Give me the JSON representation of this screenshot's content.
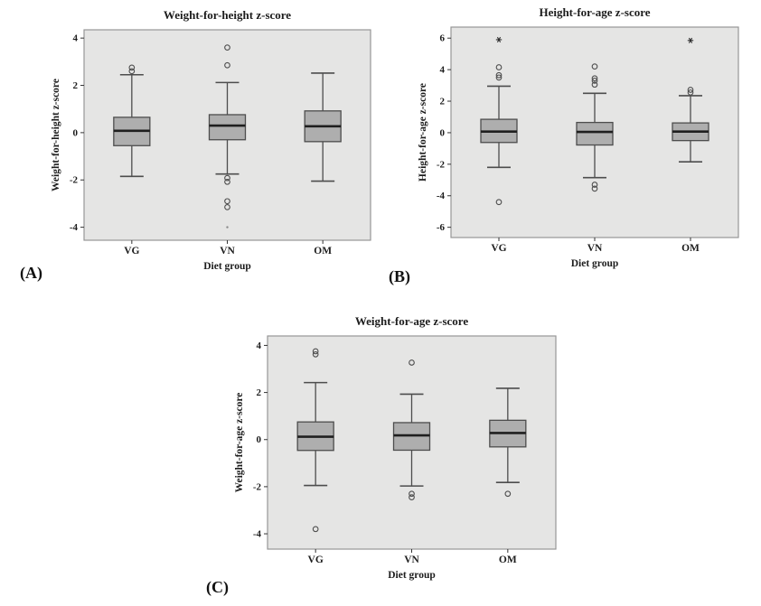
{
  "colors": {
    "plot_bg": "#e5e5e4",
    "plot_border": "#979797",
    "box_fill": "#aeaeae",
    "box_border": "#4d4d4d",
    "median": "#1f1f1f",
    "whisker": "#4d4d4d",
    "text": "#1c1c1c"
  },
  "chart_data": [
    {
      "type": "box",
      "panel_label": "(A)",
      "title": "Weight-for-height z-score",
      "ylabel": "Weight-for-height z-score",
      "xlabel": "Diet group",
      "categories": [
        "VG",
        "VN",
        "OM"
      ],
      "ylim": [
        -4.55,
        4.35
      ],
      "yticks": [
        4,
        2,
        0,
        -2,
        -4
      ],
      "grid": false,
      "boxes": [
        {
          "category": "VG",
          "whisker_low": -1.85,
          "q1": -0.55,
          "median": 0.08,
          "q3": 0.65,
          "whisker_high": 2.45,
          "outliers": [
            {
              "value": 2.6,
              "marker": "circle"
            },
            {
              "value": 2.75,
              "marker": "circle"
            }
          ]
        },
        {
          "category": "VN",
          "whisker_low": -1.75,
          "q1": -0.3,
          "median": 0.3,
          "q3": 0.76,
          "whisker_high": 2.12,
          "outliers": [
            {
              "value": 3.6,
              "marker": "circle"
            },
            {
              "value": 2.85,
              "marker": "circle"
            },
            {
              "value": -1.92,
              "marker": "circle"
            },
            {
              "value": -2.08,
              "marker": "circle"
            },
            {
              "value": -2.9,
              "marker": "circle"
            },
            {
              "value": -3.15,
              "marker": "circle"
            },
            {
              "value": -4.0,
              "marker": "dot"
            }
          ]
        },
        {
          "category": "OM",
          "whisker_low": -2.05,
          "q1": -0.38,
          "median": 0.27,
          "q3": 0.92,
          "whisker_high": 2.52,
          "outliers": []
        }
      ]
    },
    {
      "type": "box",
      "panel_label": "(B)",
      "title": "Height-for-age z-score",
      "ylabel": "Height-for-age z-score",
      "xlabel": "Diet group",
      "categories": [
        "VG",
        "VN",
        "OM"
      ],
      "ylim": [
        -6.65,
        6.7
      ],
      "yticks": [
        6,
        4,
        2,
        0,
        -2,
        -4,
        -6
      ],
      "grid": false,
      "boxes": [
        {
          "category": "VG",
          "whisker_low": -2.2,
          "q1": -0.62,
          "median": 0.07,
          "q3": 0.85,
          "whisker_high": 2.95,
          "outliers": [
            {
              "value": 5.9,
              "marker": "asterisk"
            },
            {
              "value": 4.15,
              "marker": "circle"
            },
            {
              "value": 3.65,
              "marker": "circle"
            },
            {
              "value": 3.5,
              "marker": "circle"
            },
            {
              "value": -4.4,
              "marker": "circle"
            }
          ]
        },
        {
          "category": "VN",
          "whisker_low": -2.85,
          "q1": -0.78,
          "median": 0.05,
          "q3": 0.65,
          "whisker_high": 2.5,
          "outliers": [
            {
              "value": 4.2,
              "marker": "circle"
            },
            {
              "value": 3.45,
              "marker": "circle"
            },
            {
              "value": 3.3,
              "marker": "circle"
            },
            {
              "value": 3.05,
              "marker": "circle"
            },
            {
              "value": -3.3,
              "marker": "circle"
            },
            {
              "value": -3.55,
              "marker": "circle"
            }
          ]
        },
        {
          "category": "OM",
          "whisker_low": -1.85,
          "q1": -0.5,
          "median": 0.07,
          "q3": 0.62,
          "whisker_high": 2.35,
          "outliers": [
            {
              "value": 5.85,
              "marker": "asterisk"
            },
            {
              "value": 2.72,
              "marker": "circle"
            },
            {
              "value": 2.55,
              "marker": "circle"
            }
          ]
        }
      ]
    },
    {
      "type": "box",
      "panel_label": "(C)",
      "title": "Weight-for-age z-score",
      "ylabel": "Weight-for-age z-score",
      "xlabel": "Diet group",
      "categories": [
        "VG",
        "VN",
        "OM"
      ],
      "ylim": [
        -4.65,
        4.4
      ],
      "yticks": [
        4,
        2,
        0,
        -2,
        -4
      ],
      "grid": false,
      "boxes": [
        {
          "category": "VG",
          "whisker_low": -1.95,
          "q1": -0.46,
          "median": 0.12,
          "q3": 0.75,
          "whisker_high": 2.42,
          "outliers": [
            {
              "value": 3.75,
              "marker": "circle"
            },
            {
              "value": 3.62,
              "marker": "circle"
            },
            {
              "value": -3.8,
              "marker": "circle"
            }
          ]
        },
        {
          "category": "VN",
          "whisker_low": -1.97,
          "q1": -0.45,
          "median": 0.18,
          "q3": 0.72,
          "whisker_high": 1.93,
          "outliers": [
            {
              "value": 3.27,
              "marker": "circle"
            },
            {
              "value": -2.3,
              "marker": "circle"
            },
            {
              "value": -2.45,
              "marker": "circle"
            }
          ]
        },
        {
          "category": "OM",
          "whisker_low": -1.82,
          "q1": -0.31,
          "median": 0.28,
          "q3": 0.82,
          "whisker_high": 2.18,
          "outliers": [
            {
              "value": -2.3,
              "marker": "circle"
            }
          ]
        }
      ]
    }
  ]
}
